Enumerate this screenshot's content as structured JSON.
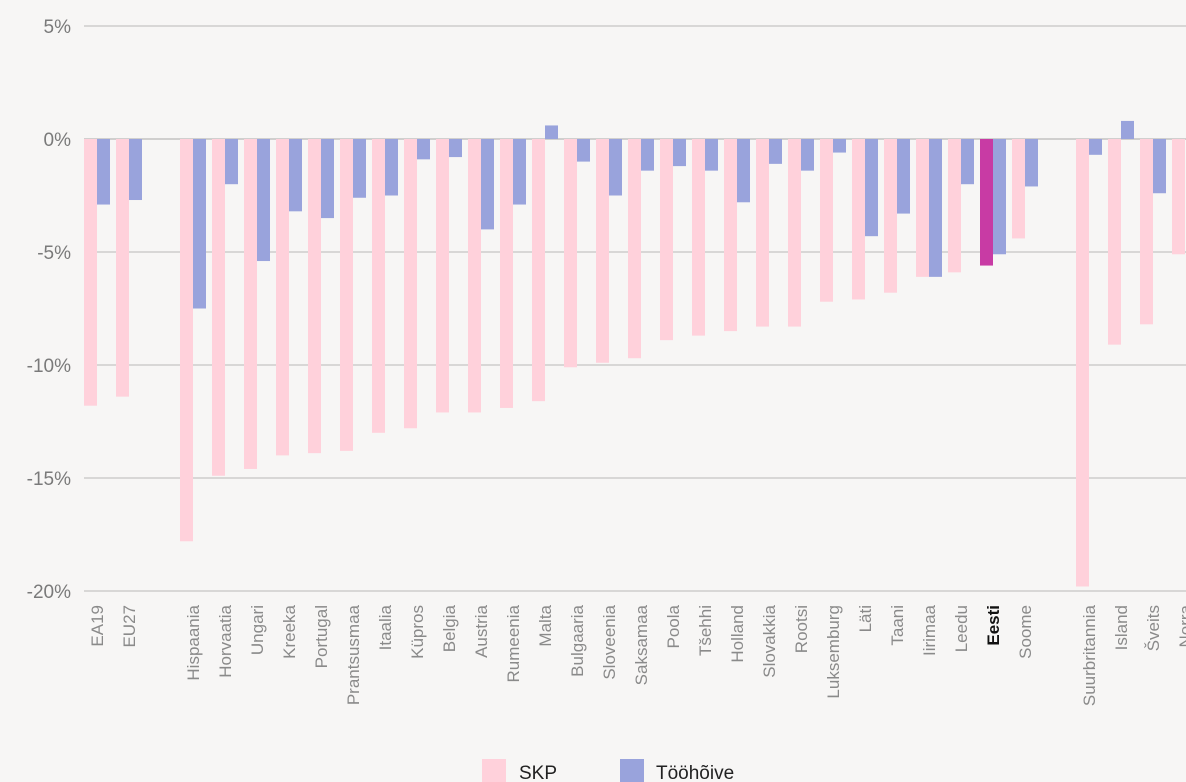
{
  "chart_data": {
    "type": "bar",
    "yticks": [
      "5%",
      "0%",
      "-5%",
      "-10%",
      "-15%",
      "-20%"
    ],
    "ytick_values": [
      5,
      0,
      -5,
      -10,
      -15,
      -20
    ],
    "ylim": [
      -20,
      5
    ],
    "grid": true,
    "legend_position": "bottom",
    "highlight_category": "Eesti",
    "categories": [
      "EA19",
      "EU27",
      "",
      "Hispaania",
      "Horvaatia",
      "Ungari",
      "Kreeka",
      "Portugal",
      "Prantsusmaa",
      "Itaalia",
      "Küpros",
      "Belgia",
      "Austria",
      "Rumeenia",
      "Malta",
      "Bulgaaria",
      "Sloveenia",
      "Saksamaa",
      "Poola",
      "Tšehhi",
      "Holland",
      "Slovakkia",
      "Rootsi",
      "Luksemburg",
      "Läti",
      "Taani",
      "Iirimaa",
      "Leedu",
      "Eesti",
      "Soome",
      "",
      "Suurbritannia",
      "Island",
      "Šveits",
      "Norra"
    ],
    "series": [
      {
        "name": "SKP",
        "color": "#ffd1db",
        "highlight_color": "#c83ba4",
        "values": [
          -11.8,
          -11.4,
          null,
          -17.8,
          -14.9,
          -14.6,
          -14.0,
          -13.9,
          -13.8,
          -13.0,
          -12.8,
          -12.1,
          -12.1,
          -11.9,
          -11.6,
          -10.1,
          -9.9,
          -9.7,
          -8.9,
          -8.7,
          -8.5,
          -8.3,
          -8.3,
          -7.2,
          -7.1,
          -6.8,
          -6.1,
          -5.9,
          -5.6,
          -4.4,
          null,
          -19.8,
          -9.1,
          -8.2,
          -5.1
        ]
      },
      {
        "name": "Tööhõive",
        "color": "#99a3dc",
        "values": [
          -2.9,
          -2.7,
          null,
          -7.5,
          -2.0,
          -5.4,
          -3.2,
          -3.5,
          -2.6,
          -2.5,
          -0.9,
          -0.8,
          -4.0,
          -2.9,
          0.6,
          -1.0,
          -2.5,
          -1.4,
          -1.2,
          -1.4,
          -2.8,
          -1.1,
          -1.4,
          -0.6,
          -4.3,
          -3.3,
          -6.1,
          -2.0,
          -5.1,
          -2.1,
          null,
          -0.7,
          0.8,
          -2.4,
          null
        ]
      }
    ]
  }
}
